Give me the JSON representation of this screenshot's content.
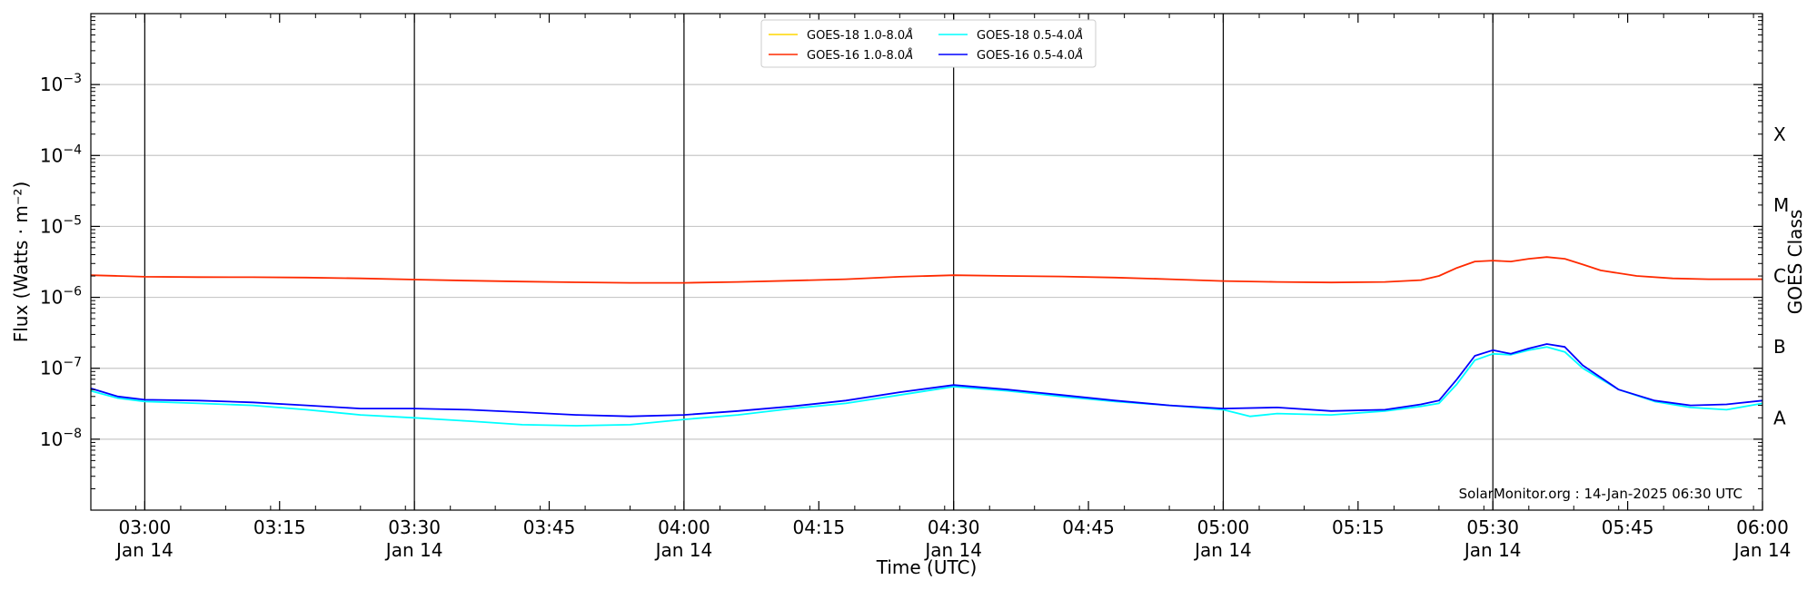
{
  "chart_data": {
    "type": "line",
    "xlabel": "Time (UTC)",
    "ylabel": "Flux (Watts · m⁻²)",
    "ylabel_right": "GOES Class",
    "xlim": [
      "02:54",
      "06:00"
    ],
    "x_start_time": "02:54",
    "y_scale": "log",
    "ylim": [
      1e-09,
      0.01
    ],
    "y_ticks": [
      {
        "exp": -8,
        "label": "10",
        "sup": "−8"
      },
      {
        "exp": -7,
        "label": "10",
        "sup": "−7"
      },
      {
        "exp": -6,
        "label": "10",
        "sup": "−6"
      },
      {
        "exp": -5,
        "label": "10",
        "sup": "−5"
      },
      {
        "exp": -4,
        "label": "10",
        "sup": "−4"
      },
      {
        "exp": -3,
        "label": "10",
        "sup": "−3"
      }
    ],
    "class_ticks": [
      {
        "label": "A",
        "value": 2e-08
      },
      {
        "label": "B",
        "value": 2e-07
      },
      {
        "label": "C",
        "value": 2e-06
      },
      {
        "label": "M",
        "value": 2e-05
      },
      {
        "label": "X",
        "value": 0.0002
      }
    ],
    "x_ticks": [
      {
        "time": "03:00",
        "line1": "03:00",
        "line2": "Jan 14"
      },
      {
        "time": "03:15",
        "line1": "03:15",
        "line2": ""
      },
      {
        "time": "03:30",
        "line1": "03:30",
        "line2": "Jan 14"
      },
      {
        "time": "03:45",
        "line1": "03:45",
        "line2": ""
      },
      {
        "time": "04:00",
        "line1": "04:00",
        "line2": "Jan 14"
      },
      {
        "time": "04:15",
        "line1": "04:15",
        "line2": ""
      },
      {
        "time": "04:30",
        "line1": "04:30",
        "line2": "Jan 14"
      },
      {
        "time": "04:45",
        "line1": "04:45",
        "line2": ""
      },
      {
        "time": "05:00",
        "line1": "05:00",
        "line2": "Jan 14"
      },
      {
        "time": "05:15",
        "line1": "05:15",
        "line2": ""
      },
      {
        "time": "05:30",
        "line1": "05:30",
        "line2": "Jan 14"
      },
      {
        "time": "05:45",
        "line1": "05:45",
        "line2": ""
      },
      {
        "time": "06:00",
        "line1": "06:00",
        "line2": "Jan 14"
      }
    ],
    "vertical_lines": [
      "03:00",
      "03:30",
      "04:00",
      "04:30",
      "05:00",
      "05:30"
    ],
    "grid": "horizontal at class levels",
    "legend_position": "top-center",
    "series": [
      {
        "name": "GOES-18 1.0-8.0",
        "unit_symbol": "Å",
        "color": "#ffd700",
        "x": [],
        "y": []
      },
      {
        "name": "GOES-16 1.0-8.0",
        "unit_symbol": "Å",
        "color": "#ff2a00",
        "x": [
          "02:54",
          "02:57",
          "03:00",
          "03:06",
          "03:12",
          "03:18",
          "03:24",
          "03:30",
          "03:36",
          "03:42",
          "03:48",
          "03:54",
          "04:00",
          "04:06",
          "04:12",
          "04:18",
          "04:24",
          "04:30",
          "04:36",
          "04:42",
          "04:48",
          "04:54",
          "05:00",
          "05:06",
          "05:12",
          "05:18",
          "05:22",
          "05:24",
          "05:26",
          "05:28",
          "05:30",
          "05:32",
          "05:34",
          "05:36",
          "05:38",
          "05:40",
          "05:42",
          "05:46",
          "05:50",
          "05:54",
          "06:00"
        ],
        "y": [
          2.05e-06,
          2e-06,
          1.95e-06,
          1.93e-06,
          1.92e-06,
          1.9e-06,
          1.85e-06,
          1.78e-06,
          1.72e-06,
          1.67e-06,
          1.63e-06,
          1.6e-06,
          1.6e-06,
          1.65e-06,
          1.72e-06,
          1.8e-06,
          1.95e-06,
          2.05e-06,
          2e-06,
          1.97e-06,
          1.9e-06,
          1.8e-06,
          1.7e-06,
          1.65e-06,
          1.62e-06,
          1.65e-06,
          1.75e-06,
          2e-06,
          2.6e-06,
          3.2e-06,
          3.3e-06,
          3.2e-06,
          3.5e-06,
          3.7e-06,
          3.5e-06,
          2.9e-06,
          2.4e-06,
          2e-06,
          1.85e-06,
          1.8e-06,
          1.8e-06
        ]
      },
      {
        "name": "GOES-18 0.5-4.0",
        "unit_symbol": "Å",
        "color": "#00ffff",
        "x": [
          "02:54",
          "02:57",
          "03:00",
          "03:06",
          "03:12",
          "03:18",
          "03:24",
          "03:30",
          "03:36",
          "03:42",
          "03:48",
          "03:54",
          "04:00",
          "04:06",
          "04:12",
          "04:18",
          "04:24",
          "04:30",
          "04:36",
          "04:42",
          "04:48",
          "04:54",
          "05:00",
          "05:03",
          "05:06",
          "05:12",
          "05:18",
          "05:22",
          "05:24",
          "05:26",
          "05:28",
          "05:30",
          "05:32",
          "05:34",
          "05:36",
          "05:38",
          "05:40",
          "05:44",
          "05:48",
          "05:52",
          "05:56",
          "06:00"
        ],
        "y": [
          4.8e-08,
          3.8e-08,
          3.4e-08,
          3.2e-08,
          3e-08,
          2.6e-08,
          2.2e-08,
          2e-08,
          1.8e-08,
          1.6e-08,
          1.55e-08,
          1.6e-08,
          1.9e-08,
          2.2e-08,
          2.7e-08,
          3.2e-08,
          4.2e-08,
          5.5e-08,
          4.8e-08,
          4e-08,
          3.4e-08,
          3e-08,
          2.6e-08,
          2.1e-08,
          2.3e-08,
          2.2e-08,
          2.5e-08,
          2.9e-08,
          3.2e-08,
          6e-08,
          1.3e-07,
          1.6e-07,
          1.55e-07,
          1.8e-07,
          2e-07,
          1.7e-07,
          1e-07,
          5e-08,
          3.4e-08,
          2.8e-08,
          2.6e-08,
          3.2e-08
        ]
      },
      {
        "name": "GOES-16 0.5-4.0",
        "unit_symbol": "Å",
        "color": "#0000ff",
        "x": [
          "02:54",
          "02:57",
          "03:00",
          "03:06",
          "03:12",
          "03:18",
          "03:24",
          "03:30",
          "03:36",
          "03:42",
          "03:48",
          "03:54",
          "04:00",
          "04:06",
          "04:12",
          "04:18",
          "04:24",
          "04:30",
          "04:36",
          "04:42",
          "04:48",
          "04:54",
          "05:00",
          "05:06",
          "05:12",
          "05:18",
          "05:22",
          "05:24",
          "05:26",
          "05:28",
          "05:30",
          "05:32",
          "05:34",
          "05:36",
          "05:38",
          "05:40",
          "05:44",
          "05:48",
          "05:52",
          "05:56",
          "06:00"
        ],
        "y": [
          5.2e-08,
          4e-08,
          3.6e-08,
          3.5e-08,
          3.3e-08,
          3e-08,
          2.7e-08,
          2.7e-08,
          2.6e-08,
          2.4e-08,
          2.2e-08,
          2.1e-08,
          2.2e-08,
          2.5e-08,
          2.9e-08,
          3.5e-08,
          4.6e-08,
          5.8e-08,
          5e-08,
          4.2e-08,
          3.5e-08,
          3e-08,
          2.7e-08,
          2.8e-08,
          2.5e-08,
          2.6e-08,
          3.1e-08,
          3.5e-08,
          7e-08,
          1.5e-07,
          1.8e-07,
          1.6e-07,
          1.9e-07,
          2.2e-07,
          2e-07,
          1.1e-07,
          5e-08,
          3.5e-08,
          3e-08,
          3.1e-08,
          3.5e-08
        ]
      }
    ],
    "annotation": "SolarMonitor.org : 14-Jan-2025 06:30 UTC"
  }
}
